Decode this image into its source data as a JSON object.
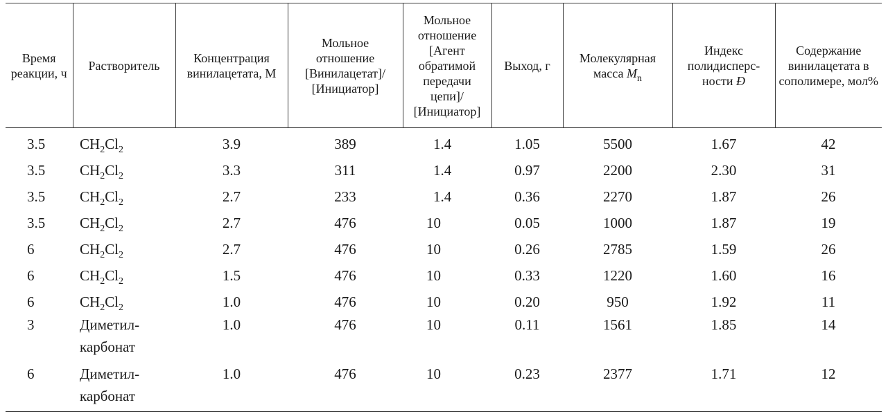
{
  "headers": {
    "time": "Время реакции, ч",
    "solvent": "Растворитель",
    "concentration": "Концентрация винилацетата, М",
    "ratio1": "Мольное отношение [Винилацетат]/ [Инициатор]",
    "ratio2": "Мольное отношение [Агент обратимой передачи цепи]/ [Инициатор]",
    "yield": "Выход, г",
    "mn_prefix": "Молекулярная масса ",
    "mn_symbol": "M",
    "mn_sub": "n",
    "pdi_prefix": "Индекс полидисперс- ности ",
    "pdi_symbol": "Đ",
    "content": "Содержание винилацетата в сополимере, мол%"
  },
  "rows": [
    {
      "time": "3.5",
      "solvent_a": "CH",
      "solvent_sub1": "2",
      "solvent_b": "Cl",
      "solvent_sub2": "2",
      "concentration": "3.9",
      "ratio1": "389",
      "ratio2": "1.4",
      "yield": "1.05",
      "mn": "5500",
      "pdi": "1.67",
      "content": "42"
    },
    {
      "time": "3.5",
      "solvent_a": "CH",
      "solvent_sub1": "2",
      "solvent_b": "Cl",
      "solvent_sub2": "2",
      "concentration": "3.3",
      "ratio1": "311",
      "ratio2": "1.4",
      "yield": "0.97",
      "mn": "2200",
      "pdi": "2.30",
      "content": "31"
    },
    {
      "time": "3.5",
      "solvent_a": "CH",
      "solvent_sub1": "2",
      "solvent_b": "Cl",
      "solvent_sub2": "2",
      "concentration": "2.7",
      "ratio1": "233",
      "ratio2": "1.4",
      "yield": "0.36",
      "mn": "2270",
      "pdi": "1.87",
      "content": "26"
    },
    {
      "time": "3.5",
      "solvent_a": "CH",
      "solvent_sub1": "2",
      "solvent_b": "Cl",
      "solvent_sub2": "2",
      "concentration": "2.7",
      "ratio1": "476",
      "ratio2": "10",
      "yield": "0.05",
      "mn": "1000",
      "pdi": "1.87",
      "content": "19"
    },
    {
      "time": "6",
      "solvent_a": "CH",
      "solvent_sub1": "2",
      "solvent_b": "Cl",
      "solvent_sub2": "2",
      "concentration": "2.7",
      "ratio1": "476",
      "ratio2": "10",
      "yield": "0.26",
      "mn": "2785",
      "pdi": "1.59",
      "content": "26"
    },
    {
      "time": "6",
      "solvent_a": "CH",
      "solvent_sub1": "2",
      "solvent_b": "Cl",
      "solvent_sub2": "2",
      "concentration": "1.5",
      "ratio1": "476",
      "ratio2": "10",
      "yield": "0.33",
      "mn": "1220",
      "pdi": "1.60",
      "content": "16"
    },
    {
      "time": "6",
      "solvent_a": "CH",
      "solvent_sub1": "2",
      "solvent_b": "Cl",
      "solvent_sub2": "2",
      "concentration": "1.0",
      "ratio1": "476",
      "ratio2": "10",
      "yield": "0.20",
      "mn": "950",
      "pdi": "1.92",
      "content": "11"
    },
    {
      "time": "3",
      "solvent_line1": "Диметил-",
      "solvent_line2": "карбонат",
      "concentration": "1.0",
      "ratio1": "476",
      "ratio2": "10",
      "yield": "0.11",
      "mn": "1561",
      "pdi": "1.85",
      "content": "14"
    },
    {
      "time": "6",
      "solvent_line1": "Диметил-",
      "solvent_line2": "карбонат",
      "concentration": "1.0",
      "ratio1": "476",
      "ratio2": "10",
      "yield": "0.23",
      "mn": "2377",
      "pdi": "1.71",
      "content": "12"
    }
  ]
}
